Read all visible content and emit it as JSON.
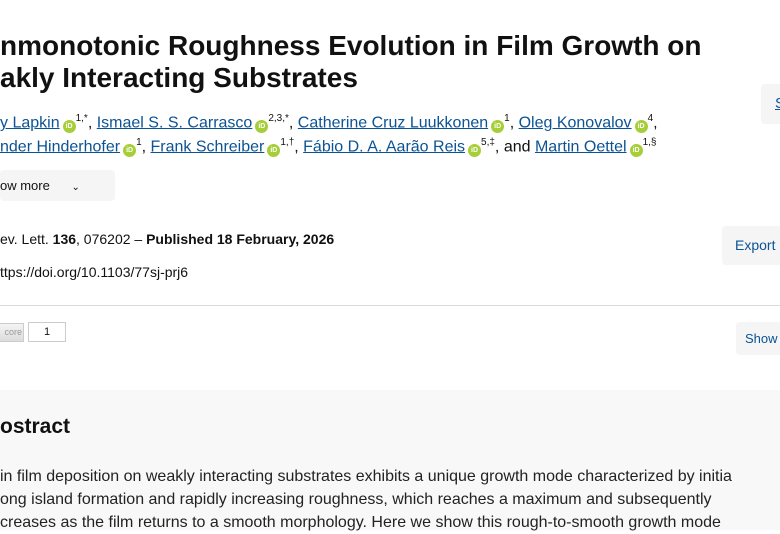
{
  "article": {
    "title_line1": "nmonotonic Roughness Evolution in Film Growth on",
    "title_line2": "akly Interacting Substrates",
    "authors_line1": [
      {
        "name": "y Lapkin",
        "sup": "1,*"
      },
      {
        "name": "Ismael S. S. Carrasco",
        "sup": "2,3,*"
      },
      {
        "name": "Catherine Cruz Luukkonen",
        "sup": "1"
      },
      {
        "name": "Oleg Konovalov",
        "sup": "4"
      }
    ],
    "authors_line2": [
      {
        "name": "nder Hinderhofer",
        "sup": "1"
      },
      {
        "name": "Frank Schreiber",
        "sup": "1,†"
      },
      {
        "name": "Fábio D. A. Aarão Reis",
        "sup": "5,‡"
      },
      {
        "name": "Martin Oettel",
        "sup": "1,§"
      }
    ],
    "and_text": "and",
    "orcid_label": "iD",
    "show_more": "ow more",
    "citation": {
      "journal": "ev. Lett.",
      "volume": "136",
      "article_no": ", 076202 – ",
      "published": "Published 18 February, 2026"
    },
    "doi": "ttps://doi.org/10.1103/77sj-prj6"
  },
  "side_buttons": {
    "top": "S",
    "export": "Export",
    "show": "Show"
  },
  "altmetric": {
    "label": "core",
    "count": "1"
  },
  "abstract": {
    "heading": "ostract",
    "lines": [
      "in film deposition on weakly interacting substrates exhibits a unique growth mode characterized by initia",
      "ong island formation and rapidly increasing roughness, which reaches a maximum and subsequently",
      "creases as the film returns to a smooth morphology. Here we show this rough-to-smooth growth mode"
    ]
  },
  "colors": {
    "link": "#0b5394",
    "orcid": "#a6ce39",
    "abstract_bg": "#f8f8f8"
  }
}
